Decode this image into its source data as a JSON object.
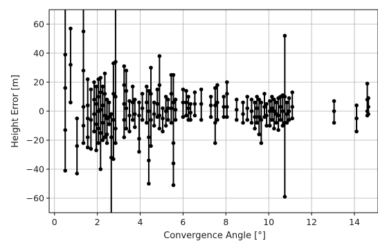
{
  "chart_data": {
    "type": "scatter",
    "title": "",
    "xlabel": "Convergence Angle [°]",
    "ylabel": "Height Error [m]",
    "xlim": [
      -0.25,
      15.1
    ],
    "ylim": [
      -70,
      70
    ],
    "x_ticks": [
      0,
      2,
      4,
      6,
      8,
      10,
      12,
      14
    ],
    "y_ticks": [
      -60,
      -40,
      -20,
      0,
      20,
      40,
      60
    ],
    "x_tick_labels": [
      "0",
      "2",
      "4",
      "6",
      "8",
      "10",
      "12",
      "14"
    ],
    "y_tick_labels": [
      "−60",
      "−40",
      "−20",
      "0",
      "20",
      "40",
      "60"
    ],
    "grid": true,
    "legend": "none",
    "marker_color": "#000000",
    "series": [
      {
        "points": [
          {
            "x": 0.5,
            "values": [
              39,
              16,
              -13,
              -41
            ],
            "y_max": 70
          },
          {
            "x": 0.75,
            "values": [
              57,
              32,
              6
            ]
          },
          {
            "x": 1.05,
            "values": [
              -5,
              -24,
              -43
            ]
          },
          {
            "x": 1.35,
            "values": [
              55,
              28,
              3,
              -10,
              -22
            ],
            "y_max": 70
          },
          {
            "x": 1.55,
            "values": [
              22,
              4,
              -5,
              -18,
              -25
            ]
          },
          {
            "x": 1.7,
            "values": [
              15,
              -6,
              -26
            ]
          },
          {
            "x": 1.85,
            "values": [
              20,
              8,
              -2,
              -14
            ]
          },
          {
            "x": 1.95,
            "values": [
              17,
              5,
              -9,
              -27
            ]
          },
          {
            "x": 2.05,
            "values": [
              22,
              10,
              0,
              -12,
              -22
            ]
          },
          {
            "x": 2.15,
            "values": [
              23,
              13,
              1,
              -15,
              -40
            ]
          },
          {
            "x": 2.25,
            "values": [
              17,
              4,
              -8,
              -20
            ]
          },
          {
            "x": 2.35,
            "values": [
              26,
              12,
              -3,
              -18
            ]
          },
          {
            "x": 2.45,
            "values": [
              8,
              -5,
              -16,
              -22
            ]
          },
          {
            "x": 2.55,
            "values": [
              6,
              -4,
              -9
            ]
          },
          {
            "x": 2.65,
            "values": [
              -2,
              -18,
              -32
            ],
            "y_min": -70
          },
          {
            "x": 2.75,
            "values": [
              33,
              12,
              -6,
              -33
            ]
          },
          {
            "x": 2.85,
            "values": [
              34,
              10,
              -12,
              -22
            ],
            "y_max": 70
          },
          {
            "x": 3.25,
            "values": [
              31,
              18,
              5,
              -6,
              -18
            ]
          },
          {
            "x": 3.35,
            "values": [
              28,
              14,
              2,
              -12
            ]
          },
          {
            "x": 3.5,
            "values": [
              7,
              -3,
              -14
            ]
          },
          {
            "x": 3.65,
            "values": [
              17,
              6,
              -6
            ]
          },
          {
            "x": 3.75,
            "values": [
              8,
              -2,
              -11
            ]
          },
          {
            "x": 3.95,
            "values": [
              6,
              -3,
              -19,
              -28
            ]
          },
          {
            "x": 4.1,
            "values": [
              12,
              2,
              -6
            ]
          },
          {
            "x": 4.3,
            "values": [
              17,
              6,
              -8
            ]
          },
          {
            "x": 4.4,
            "values": [
              14,
              0,
              -18,
              -34,
              -50
            ]
          },
          {
            "x": 4.5,
            "values": [
              30,
              12,
              -6,
              -24
            ]
          },
          {
            "x": 4.65,
            "values": [
              6,
              -2,
              -10
            ]
          },
          {
            "x": 4.8,
            "values": [
              15,
              5,
              -4
            ]
          },
          {
            "x": 4.9,
            "values": [
              38,
              18,
              -3,
              -12
            ]
          },
          {
            "x": 5.05,
            "values": [
              2,
              -5,
              -14
            ]
          },
          {
            "x": 5.2,
            "values": [
              10,
              0,
              -10
            ]
          },
          {
            "x": 5.3,
            "values": [
              8,
              2,
              -6
            ]
          },
          {
            "x": 5.45,
            "values": [
              25,
              12,
              2,
              -8
            ]
          },
          {
            "x": 5.55,
            "values": [
              25,
              6,
              -22,
              -36,
              -51
            ]
          },
          {
            "x": 5.65,
            "values": [
              8,
              1,
              -6
            ]
          },
          {
            "x": 6.0,
            "values": [
              15,
              6,
              -4
            ]
          },
          {
            "x": 6.15,
            "values": [
              14,
              6,
              -3
            ]
          },
          {
            "x": 6.25,
            "values": [
              10,
              2,
              -6
            ]
          },
          {
            "x": 6.35,
            "values": [
              5,
              -1,
              -6
            ]
          },
          {
            "x": 6.55,
            "values": [
              13,
              5,
              -3
            ]
          },
          {
            "x": 6.85,
            "values": [
              15,
              5,
              -6
            ]
          },
          {
            "x": 7.3,
            "values": [
              10,
              4,
              -4
            ]
          },
          {
            "x": 7.5,
            "values": [
              16,
              4,
              -8,
              -22
            ]
          },
          {
            "x": 7.6,
            "values": [
              18,
              6,
              -6
            ]
          },
          {
            "x": 7.9,
            "values": [
              10,
              3,
              -4
            ]
          },
          {
            "x": 8.05,
            "values": [
              20,
              12,
              3,
              -4
            ]
          },
          {
            "x": 8.5,
            "values": [
              8,
              1,
              -6
            ]
          },
          {
            "x": 8.8,
            "values": [
              6,
              -2,
              -8
            ]
          },
          {
            "x": 9.0,
            "values": [
              10,
              2,
              -6
            ]
          },
          {
            "x": 9.2,
            "values": [
              8,
              0,
              -8
            ]
          },
          {
            "x": 9.35,
            "values": [
              6,
              -4,
              -12
            ]
          },
          {
            "x": 9.45,
            "values": [
              10,
              2,
              -8
            ]
          },
          {
            "x": 9.55,
            "values": [
              8,
              -4,
              -16
            ]
          },
          {
            "x": 9.65,
            "values": [
              6,
              -6,
              -22
            ]
          },
          {
            "x": 9.8,
            "values": [
              12,
              3,
              -4
            ]
          },
          {
            "x": 9.9,
            "values": [
              5,
              -3,
              -10
            ]
          },
          {
            "x": 10.05,
            "values": [
              7,
              0,
              -10
            ]
          },
          {
            "x": 10.15,
            "values": [
              10,
              2,
              -6
            ]
          },
          {
            "x": 10.25,
            "values": [
              8,
              0,
              -12
            ]
          },
          {
            "x": 10.35,
            "values": [
              6,
              -2,
              -8
            ]
          },
          {
            "x": 10.45,
            "values": [
              9,
              -3,
              -13
            ]
          },
          {
            "x": 10.55,
            "values": [
              10,
              3,
              -6
            ]
          },
          {
            "x": 10.65,
            "values": [
              11,
              0,
              -10
            ]
          },
          {
            "x": 10.75,
            "values": [
              52,
              10,
              -8,
              -59
            ]
          },
          {
            "x": 10.85,
            "values": [
              6,
              -2,
              -8
            ]
          },
          {
            "x": 10.95,
            "values": [
              9,
              0,
              -6
            ]
          },
          {
            "x": 11.1,
            "values": [
              13,
              3,
              -5
            ]
          },
          {
            "x": 13.05,
            "values": [
              7,
              0,
              -8
            ]
          },
          {
            "x": 14.1,
            "values": [
              4,
              -5,
              -14
            ]
          },
          {
            "x": 14.6,
            "values": [
              19,
              8,
              0,
              -3
            ]
          },
          {
            "x": 14.65,
            "values": [
              9,
              3,
              -2
            ]
          }
        ]
      }
    ]
  }
}
